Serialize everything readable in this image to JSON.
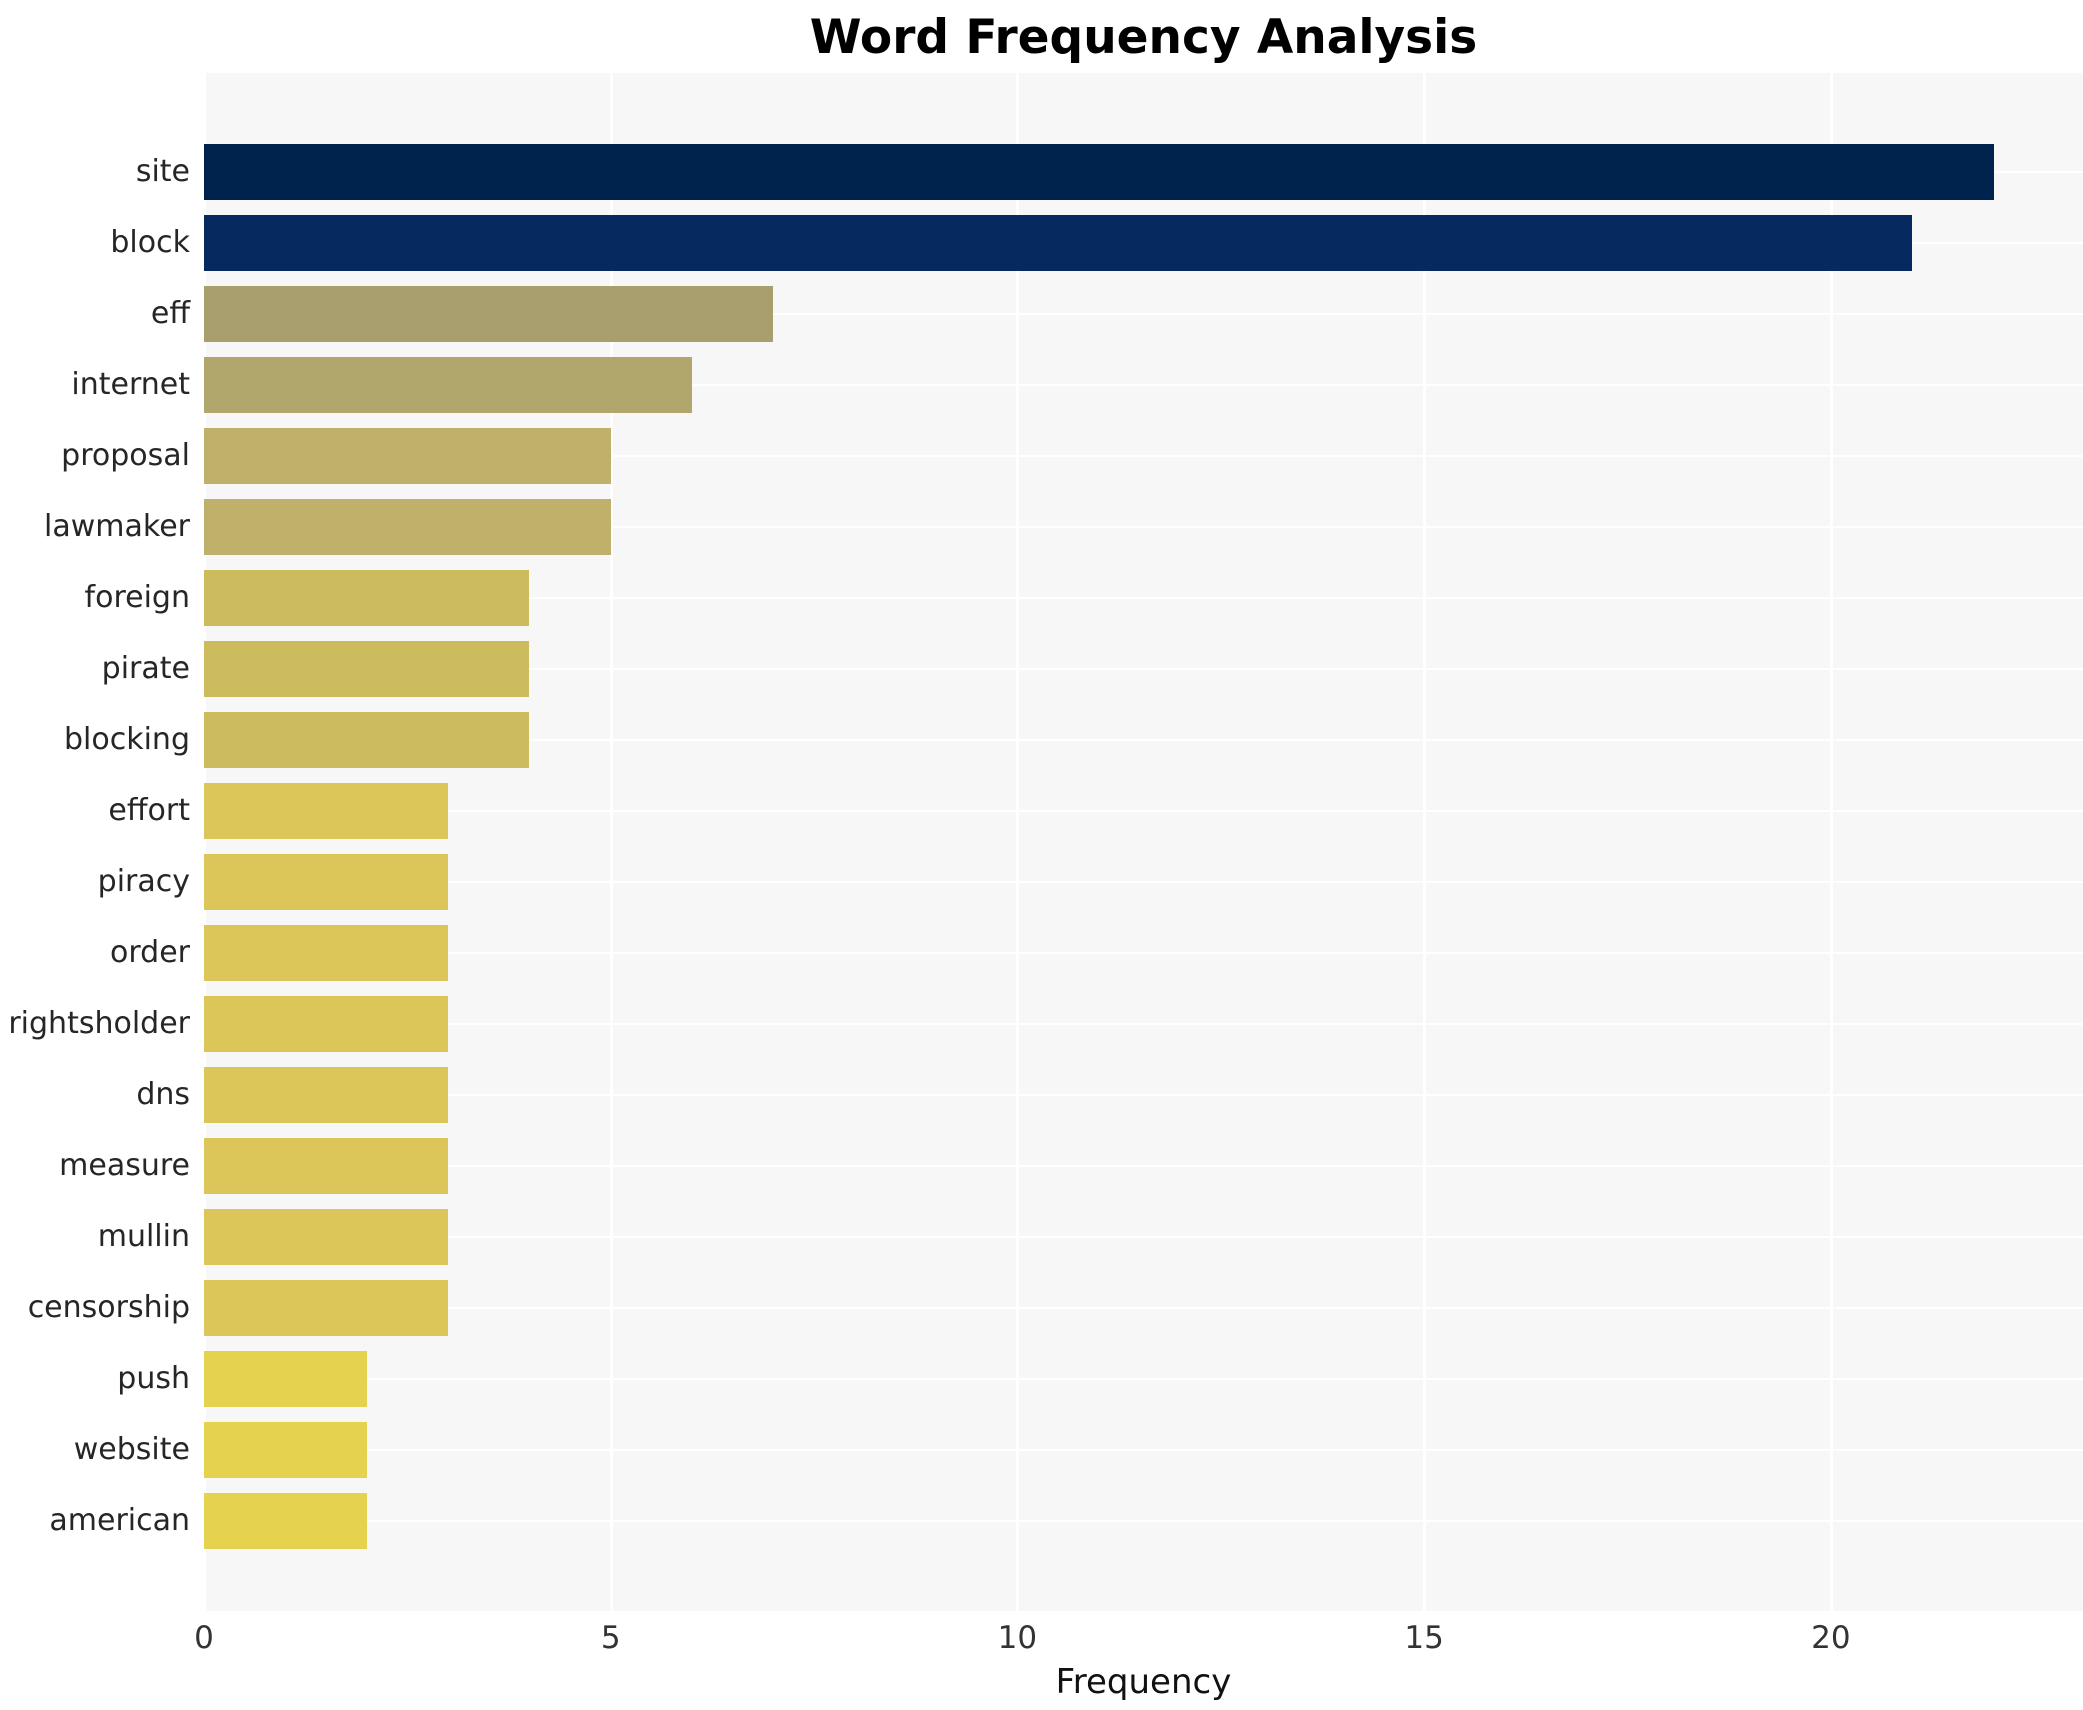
{
  "chart_data": {
    "type": "bar",
    "orientation": "horizontal",
    "title": "Word Frequency Analysis",
    "xlabel": "Frequency",
    "ylabel": "",
    "categories": [
      "site",
      "block",
      "eff",
      "internet",
      "proposal",
      "lawmaker",
      "foreign",
      "pirate",
      "blocking",
      "effort",
      "piracy",
      "order",
      "rightsholder",
      "dns",
      "measure",
      "mullin",
      "censorship",
      "push",
      "website",
      "american"
    ],
    "values": [
      22,
      21,
      7,
      6,
      5,
      5,
      4,
      4,
      4,
      3,
      3,
      3,
      3,
      3,
      3,
      3,
      3,
      2,
      2,
      2
    ],
    "bar_colors": [
      "#00234d",
      "#042a60",
      "#a89e6e",
      "#b1a76c",
      "#bfb169",
      "#bfb169",
      "#cdbc5e",
      "#cdbc5e",
      "#cdbc5e",
      "#dcc65a",
      "#dcc65a",
      "#dcc65a",
      "#dcc65a",
      "#dcc65a",
      "#dcc65a",
      "#dcc65a",
      "#dcc65a",
      "#e5d24e",
      "#e5d24e",
      "#e5d24e"
    ],
    "xlim": [
      0,
      23.1
    ],
    "xticks": [
      0,
      5,
      10,
      15,
      20
    ],
    "grid": true,
    "legend": false,
    "plot_background": "#f7f7f7",
    "grid_color": "#ffffff",
    "colormap": "cividis-reversed-by-value"
  }
}
